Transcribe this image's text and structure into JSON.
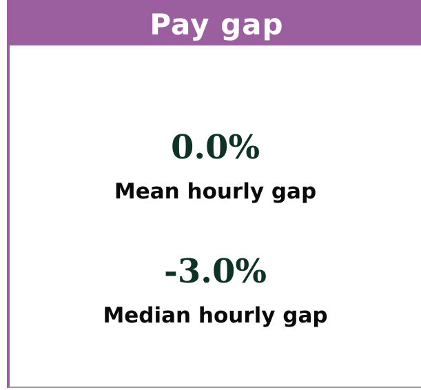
{
  "header": {
    "title": "Pay gap"
  },
  "metrics": [
    {
      "value": "0.0%",
      "label": "Mean hourly gap"
    },
    {
      "value": "-3.0%",
      "label": "Median hourly gap"
    }
  ]
}
